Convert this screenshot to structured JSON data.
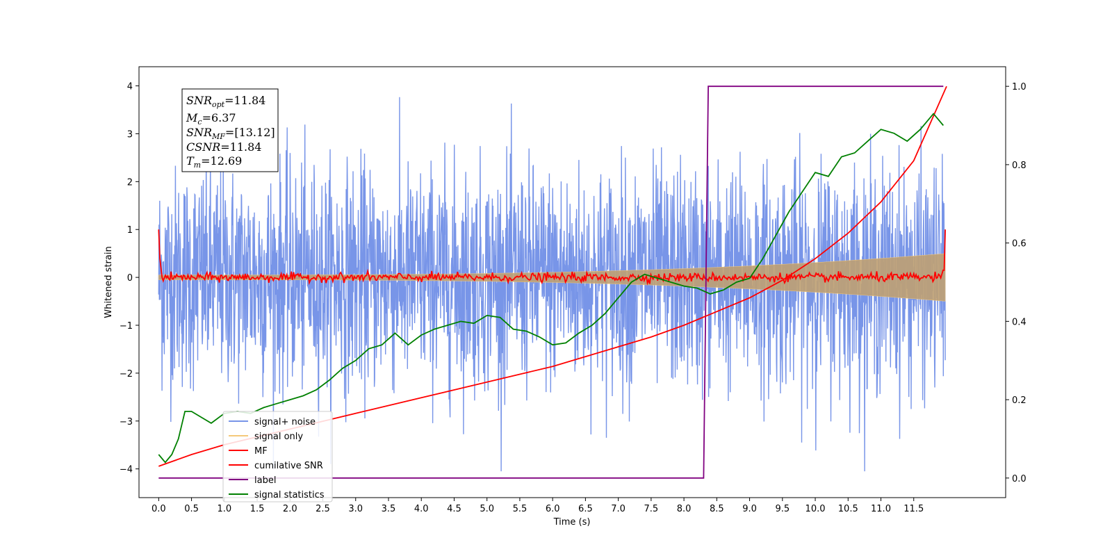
{
  "chart_data": {
    "type": "line",
    "xlabel": "Time (s)",
    "ylabel": "Whitened strain",
    "xlim": [
      -0.3,
      12.9
    ],
    "ylim_left": [
      -4.6,
      4.4
    ],
    "ylim_right": [
      -0.05,
      1.05
    ],
    "x_ticks": [
      "0.0",
      "0.5",
      "1.0",
      "1.5",
      "2.0",
      "2.5",
      "3.0",
      "3.5",
      "4.0",
      "4.5",
      "5.0",
      "5.5",
      "6.0",
      "6.5",
      "7.0",
      "7.5",
      "8.0",
      "8.5",
      "9.0",
      "9.5",
      "10.0",
      "10.5",
      "11.0",
      "11.5"
    ],
    "y_ticks_left": [
      "4",
      "3",
      "2",
      "1",
      "0",
      "−1",
      "−2",
      "−3",
      "−4"
    ],
    "y_ticks_right": [
      "1.0",
      "0.8",
      "0.6",
      "0.4",
      "0.2",
      "0.0"
    ],
    "colors": {
      "signal_noise": "#7895e8",
      "signal_only": "#f5c97a",
      "envelope": "#bfa072",
      "mf": "#ff0000",
      "cumulative": "#ff0000",
      "label": "#800080",
      "stats": "#008000"
    },
    "annotation": {
      "snr_opt": {
        "base": "SNR",
        "sub": "opt",
        "value": "=11.84"
      },
      "mc": {
        "base": "M",
        "sub": "c",
        "value": "=6.37"
      },
      "snr_mf": {
        "base": "SNR",
        "sub": "MF",
        "value": "=[13.12]"
      },
      "csnr": {
        "base": "CSNR",
        "value": "=11.84"
      },
      "tm": {
        "base": "T",
        "sub": "m",
        "value": "=12.69"
      }
    },
    "legend": {
      "placement": "lower-left",
      "entries": [
        "signal+ noise",
        "signal only",
        "MF",
        "cumilative SNR",
        "label",
        "signal statistics"
      ]
    },
    "series": [
      {
        "name": "label",
        "axis": "right",
        "x": [
          0.0,
          8.3,
          8.37,
          11.95
        ],
        "values": [
          0.0,
          0.0,
          1.0,
          1.0
        ]
      },
      {
        "name": "cumilative SNR",
        "axis": "right",
        "x": [
          0.0,
          0.5,
          1.0,
          1.5,
          2.0,
          2.5,
          3.0,
          3.5,
          4.0,
          4.5,
          5.0,
          5.5,
          6.0,
          6.5,
          7.0,
          7.5,
          8.0,
          8.5,
          9.0,
          9.5,
          10.0,
          10.5,
          11.0,
          11.5,
          12.0
        ],
        "values": [
          0.03,
          0.06,
          0.085,
          0.105,
          0.125,
          0.145,
          0.165,
          0.185,
          0.205,
          0.225,
          0.245,
          0.265,
          0.285,
          0.31,
          0.335,
          0.36,
          0.39,
          0.425,
          0.46,
          0.505,
          0.56,
          0.625,
          0.705,
          0.81,
          1.0
        ]
      },
      {
        "name": "signal statistics",
        "axis": "right",
        "x": [
          0.0,
          0.1,
          0.2,
          0.3,
          0.4,
          0.5,
          0.6,
          0.8,
          1.0,
          1.2,
          1.4,
          1.6,
          1.8,
          2.0,
          2.2,
          2.4,
          2.6,
          2.8,
          3.0,
          3.2,
          3.4,
          3.6,
          3.8,
          4.0,
          4.2,
          4.4,
          4.6,
          4.8,
          5.0,
          5.2,
          5.4,
          5.6,
          5.8,
          6.0,
          6.2,
          6.4,
          6.6,
          6.8,
          7.0,
          7.2,
          7.4,
          7.6,
          7.8,
          8.0,
          8.2,
          8.4,
          8.6,
          8.8,
          9.0,
          9.2,
          9.4,
          9.6,
          9.8,
          10.0,
          10.2,
          10.4,
          10.6,
          10.8,
          11.0,
          11.2,
          11.4,
          11.6,
          11.8,
          11.95
        ],
        "values": [
          0.06,
          0.04,
          0.06,
          0.1,
          0.17,
          0.17,
          0.16,
          0.14,
          0.165,
          0.17,
          0.165,
          0.18,
          0.19,
          0.2,
          0.21,
          0.225,
          0.25,
          0.28,
          0.3,
          0.33,
          0.34,
          0.37,
          0.34,
          0.365,
          0.38,
          0.39,
          0.4,
          0.395,
          0.415,
          0.41,
          0.38,
          0.375,
          0.36,
          0.34,
          0.345,
          0.37,
          0.39,
          0.42,
          0.46,
          0.5,
          0.52,
          0.51,
          0.5,
          0.49,
          0.485,
          0.47,
          0.48,
          0.5,
          0.51,
          0.56,
          0.62,
          0.68,
          0.73,
          0.78,
          0.77,
          0.82,
          0.83,
          0.86,
          0.89,
          0.88,
          0.86,
          0.89,
          0.93,
          0.9
        ]
      }
    ]
  }
}
